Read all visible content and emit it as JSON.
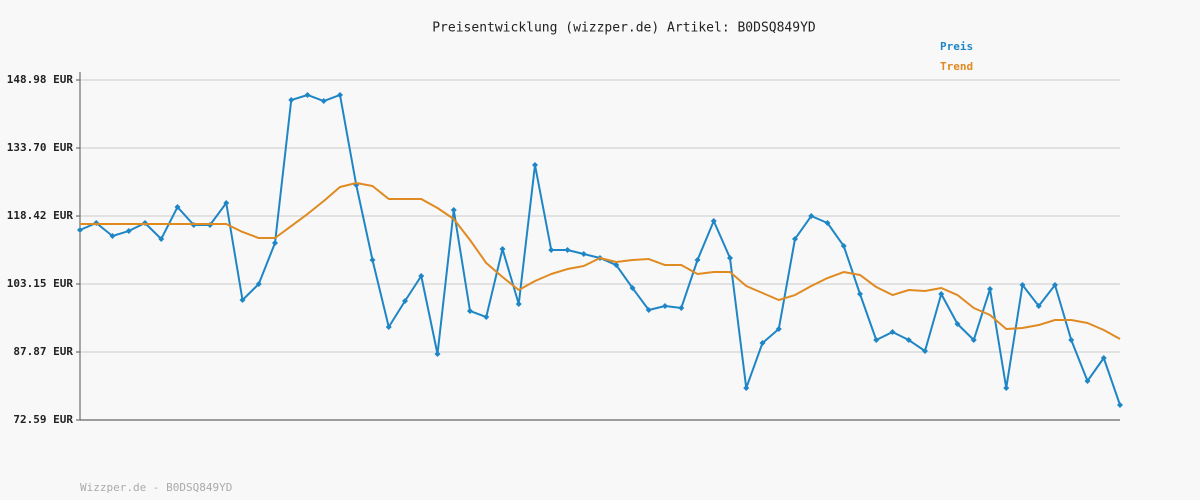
{
  "chart_data": {
    "type": "line",
    "title": "Preisentwicklung (wizzper.de) Artikel: B0DSQ849YD",
    "footer": "Wizzper.de - B0DSQ849YD",
    "categories": [
      null,
      null,
      null,
      null,
      null,
      null,
      null,
      null,
      null,
      null,
      null,
      null,
      null,
      null,
      null,
      null,
      null,
      null,
      null,
      null,
      null,
      null,
      null,
      null,
      null,
      null,
      null,
      null,
      null,
      null,
      null,
      null,
      null,
      null,
      null,
      null,
      null,
      null,
      null,
      null,
      null,
      null,
      null,
      null,
      null,
      null,
      null,
      null,
      null,
      null,
      null,
      null,
      null,
      null,
      null,
      null,
      null,
      null,
      null,
      null,
      null,
      null,
      null,
      null,
      null
    ],
    "series": [
      {
        "name": "Preis",
        "color": "#1f86c6",
        "markers": true,
        "values": [
          115.28,
          116.85,
          113.93,
          115.05,
          116.85,
          113.26,
          120.44,
          116.4,
          116.4,
          121.34,
          99.55,
          103.15,
          112.36,
          144.48,
          145.61,
          144.26,
          145.61,
          125.39,
          108.54,
          93.48,
          99.33,
          104.94,
          87.42,
          119.77,
          97.08,
          95.73,
          111.01,
          98.65,
          129.88,
          110.78,
          110.78,
          109.88,
          108.99,
          107.41,
          102.25,
          97.3,
          98.2,
          97.75,
          108.54,
          117.3,
          108.99,
          79.78,
          89.89,
          93.03,
          113.26,
          118.42,
          116.85,
          111.68,
          100.9,
          90.56,
          92.36,
          90.56,
          88.09,
          100.9,
          94.16,
          90.56,
          102.02,
          79.78,
          102.92,
          98.2,
          102.92,
          90.56,
          81.35,
          86.52,
          75.96
        ]
      },
      {
        "name": "Trend",
        "color": "#e08a22",
        "markers": false,
        "values": [
          116.63,
          116.63,
          116.63,
          116.63,
          116.63,
          116.63,
          116.63,
          116.63,
          116.63,
          116.63,
          114.83,
          113.48,
          113.48,
          116.17,
          118.87,
          121.79,
          124.94,
          125.84,
          125.16,
          122.24,
          122.24,
          122.24,
          120.22,
          117.75,
          113.03,
          107.86,
          104.72,
          101.8,
          103.82,
          105.39,
          106.51,
          107.19,
          108.99,
          108.09,
          108.54,
          108.76,
          107.41,
          107.41,
          105.39,
          105.84,
          105.84,
          102.7,
          101.12,
          99.55,
          100.67,
          102.7,
          104.49,
          105.84,
          105.17,
          102.47,
          100.67,
          101.8,
          101.57,
          102.25,
          100.67,
          97.75,
          96.18,
          93.03,
          93.26,
          93.93,
          95.06,
          95.06,
          94.38,
          92.81,
          90.79
        ]
      }
    ],
    "ylim": [
      72.59,
      148.98
    ],
    "yticks": [
      {
        "value": 72.59,
        "label": "72.59 EUR"
      },
      {
        "value": 87.87,
        "label": "87.87 EUR"
      },
      {
        "value": 103.15,
        "label": "103.15 EUR"
      },
      {
        "value": 118.42,
        "label": "118.42 EUR"
      },
      {
        "value": 133.7,
        "label": "133.70 EUR"
      },
      {
        "value": 148.98,
        "label": "148.98 EUR"
      }
    ],
    "grid": true,
    "legend": "top-right"
  }
}
